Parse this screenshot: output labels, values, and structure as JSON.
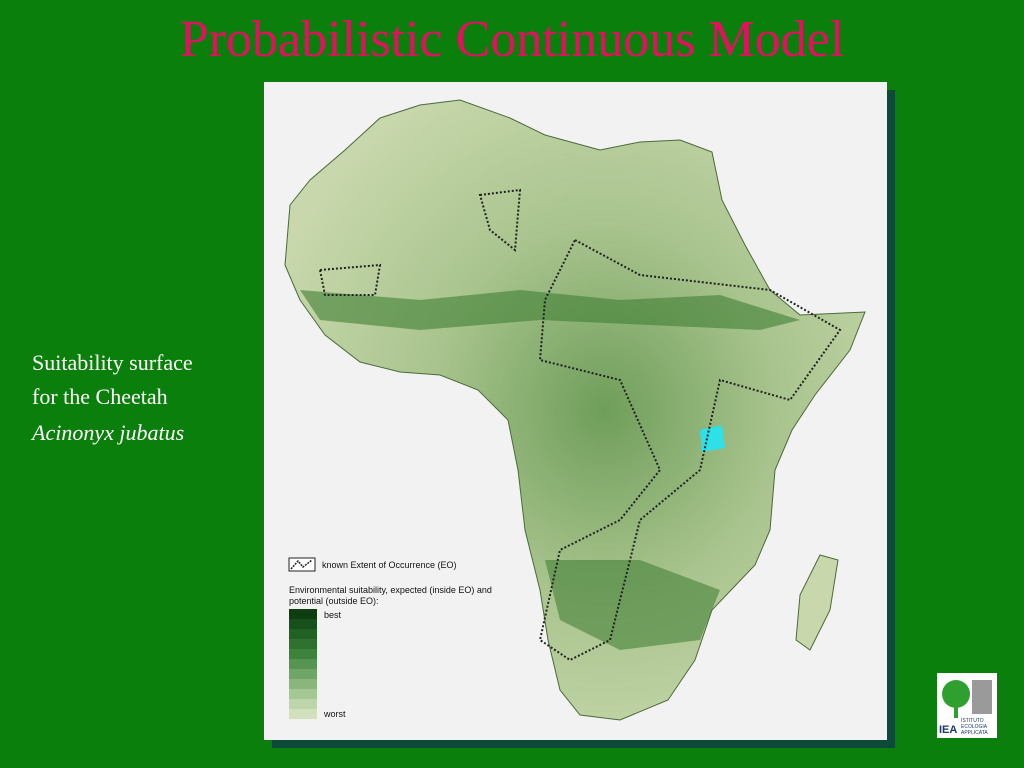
{
  "slide": {
    "title": "Probabilistic Continuous Model",
    "caption": [
      "Suitability surface",
      "for the Cheetah",
      "Acinonyx jubatus"
    ]
  },
  "map": {
    "legend": {
      "eo_label": "known Extent of Occurrence (EO)",
      "scale_title": [
        "Environmental suitability, expected (inside EO) and",
        "potential (outside EO):"
      ],
      "best": "best",
      "worst": "worst"
    }
  },
  "logo": {
    "abbr": "IEA",
    "name": [
      "ISTITUTO",
      "ECOLOGIA",
      "APPLICATA"
    ]
  }
}
